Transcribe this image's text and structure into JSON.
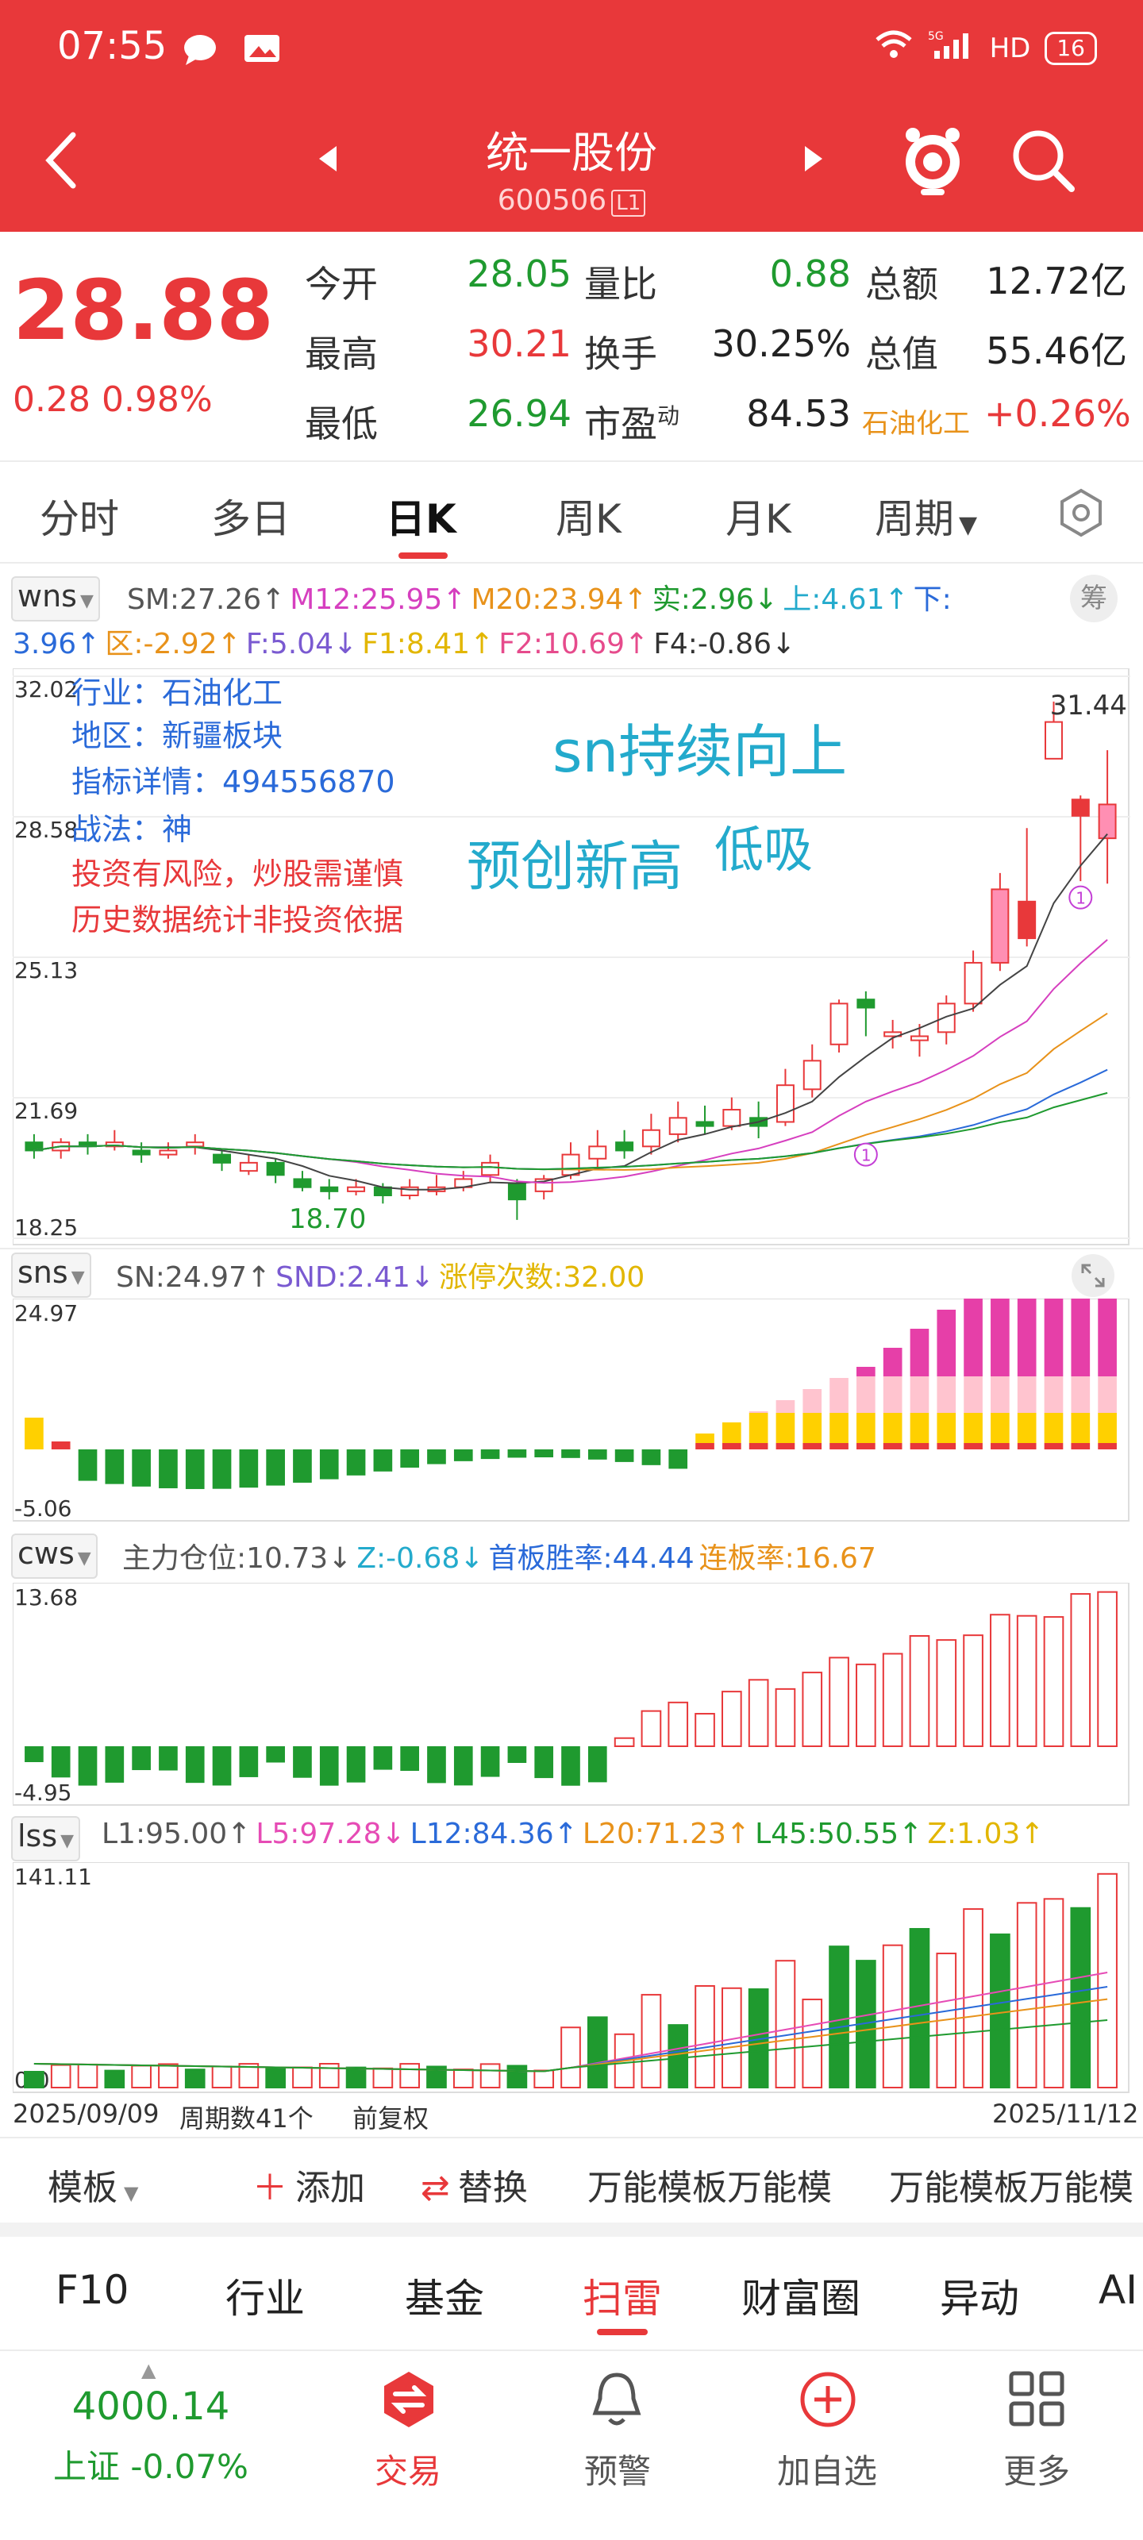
{
  "status": {
    "time": "07:55",
    "network": "5G",
    "hd": "HD",
    "battery": "16"
  },
  "header": {
    "title": "统一股份",
    "code": "600506",
    "level": "L1"
  },
  "quote": {
    "price": "28.88",
    "change": "0.28 0.98%",
    "fields": [
      {
        "label": "今开",
        "value": "28.05",
        "color": "green"
      },
      {
        "label": "量比",
        "value": "0.88",
        "color": "green"
      },
      {
        "label": "总额",
        "value": "12.72亿",
        "color": "dark"
      },
      {
        "label": "最高",
        "value": "30.21",
        "color": "red"
      },
      {
        "label": "换手",
        "value": "30.25%",
        "color": "dark"
      },
      {
        "label": "总值",
        "value": "55.46亿",
        "color": "dark"
      },
      {
        "label": "最低",
        "value": "26.94",
        "color": "green"
      },
      {
        "label": "市盈",
        "sup": "动",
        "value": "84.53",
        "color": "dark"
      },
      {
        "label": "石油化工",
        "value": "+0.26%",
        "color": "red"
      }
    ]
  },
  "tabs": [
    "分时",
    "多日",
    "日K",
    "周K",
    "月K",
    "周期"
  ],
  "active_tab": "日K",
  "chip_label": "筹",
  "wns": {
    "name": "wns",
    "line1": [
      {
        "t": "SM:27.26↑",
        "c": "#555"
      },
      {
        "t": "M12:25.95↑",
        "c": "#d63fbf"
      },
      {
        "t": "M20:23.94↑",
        "c": "#e8921a"
      },
      {
        "t": "实:2.96↓",
        "c": "#1f9a2f"
      },
      {
        "t": "上:4.61↑",
        "c": "#23aacc"
      },
      {
        "t": "下:",
        "c": "#2a6ad9"
      }
    ],
    "line2": [
      {
        "t": "3.96↑",
        "c": "#2a6ad9"
      },
      {
        "t": "区:-2.92↑",
        "c": "#e8921a"
      },
      {
        "t": "F:5.04↓",
        "c": "#7a5ad1"
      },
      {
        "t": "F1:8.41↑",
        "c": "#e2b600"
      },
      {
        "t": "F2:10.69↑",
        "c": "#e64b8c"
      },
      {
        "t": "F4:-0.86↓",
        "c": "#333"
      }
    ]
  },
  "kline_info": {
    "industry": "行业：石油化工",
    "region": "地区：新疆板块",
    "detail": "指标详情：494556870",
    "tactic": "战法：神",
    "risk1": "投资有风险，炒股需谨慎",
    "risk2": "历史数据统计非投资依据",
    "ann_up": "sn持续向上",
    "ann_high": "预创新高",
    "ann_low": "低吸",
    "high_label": "31.44",
    "low_label": "18.70",
    "y_labels": [
      "32.02",
      "28.58",
      "25.13",
      "21.69",
      "18.25"
    ]
  },
  "sns": {
    "name": "sns",
    "line": [
      {
        "t": "SN:24.97↑",
        "c": "#555"
      },
      {
        "t": "SND:2.41↓",
        "c": "#7a5ad1"
      },
      {
        "t": "涨停次数:32.00",
        "c": "#e2b600"
      }
    ],
    "y_labels": [
      "24.97",
      "-5.06"
    ]
  },
  "cws": {
    "name": "cws",
    "line": [
      {
        "t": "主力仓位:10.73↓",
        "c": "#555"
      },
      {
        "t": "Z:-0.68↓",
        "c": "#23aacc"
      },
      {
        "t": "首板胜率:44.44",
        "c": "#2a6ad9"
      },
      {
        "t": "连板率:16.67",
        "c": "#e8921a"
      }
    ],
    "y_labels": [
      "13.68",
      "-4.95"
    ]
  },
  "lss": {
    "name": "lss",
    "line": [
      {
        "t": "L1:95.00↑",
        "c": "#555"
      },
      {
        "t": "L5:97.28↓",
        "c": "#e64bb5"
      },
      {
        "t": "L12:84.36↑",
        "c": "#2a6ad9"
      },
      {
        "t": "L20:71.23↑",
        "c": "#e8921a"
      },
      {
        "t": "L45:50.55↑",
        "c": "#1f9a2f"
      },
      {
        "t": "Z:1.03↑",
        "c": "#e2b600"
      }
    ],
    "y_labels": [
      "141.11",
      "0.00"
    ]
  },
  "xaxis": {
    "start": "2025/09/09",
    "period": "周期数41个",
    "adjust": "前复权",
    "end": "2025/11/12"
  },
  "chart_data": {
    "type": "candlestick",
    "x_start": "2025/09/09",
    "x_end": "2025/11/12",
    "ylim": [
      18.25,
      32.02
    ],
    "candles": [
      [
        20.6,
        20.4,
        20.8,
        20.2
      ],
      [
        20.4,
        20.6,
        20.7,
        20.2
      ],
      [
        20.6,
        20.5,
        20.8,
        20.3
      ],
      [
        20.5,
        20.6,
        20.9,
        20.4
      ],
      [
        20.4,
        20.3,
        20.6,
        20.1
      ],
      [
        20.3,
        20.4,
        20.6,
        20.2
      ],
      [
        20.5,
        20.6,
        20.8,
        20.3
      ],
      [
        20.3,
        20.1,
        20.4,
        19.9
      ],
      [
        19.9,
        20.1,
        20.3,
        19.8
      ],
      [
        20.1,
        19.8,
        20.2,
        19.6
      ],
      [
        19.7,
        19.5,
        19.9,
        19.4
      ],
      [
        19.5,
        19.4,
        19.7,
        19.2
      ],
      [
        19.4,
        19.5,
        19.7,
        19.3
      ],
      [
        19.5,
        19.3,
        19.6,
        19.1
      ],
      [
        19.3,
        19.5,
        19.7,
        19.2
      ],
      [
        19.4,
        19.5,
        19.8,
        19.3
      ],
      [
        19.5,
        19.7,
        19.9,
        19.4
      ],
      [
        19.8,
        20.1,
        20.3,
        19.6
      ],
      [
        19.6,
        19.2,
        19.7,
        18.7
      ],
      [
        19.4,
        19.7,
        19.8,
        19.2
      ],
      [
        19.8,
        20.3,
        20.6,
        19.7
      ],
      [
        20.2,
        20.5,
        20.9,
        20.0
      ],
      [
        20.6,
        20.4,
        20.9,
        20.2
      ],
      [
        20.5,
        20.9,
        21.3,
        20.3
      ],
      [
        20.8,
        21.2,
        21.6,
        20.6
      ],
      [
        21.1,
        21.0,
        21.5,
        20.8
      ],
      [
        21.0,
        21.4,
        21.7,
        20.9
      ],
      [
        21.2,
        21.0,
        21.6,
        20.7
      ],
      [
        21.1,
        22.0,
        22.4,
        21.0
      ],
      [
        21.9,
        22.6,
        23.0,
        21.7
      ],
      [
        23.0,
        24.0,
        24.1,
        22.8
      ],
      [
        24.1,
        23.9,
        24.3,
        23.2
      ],
      [
        23.2,
        23.3,
        23.6,
        22.9
      ],
      [
        23.1,
        23.2,
        23.5,
        22.7
      ],
      [
        23.3,
        24.0,
        24.2,
        23.0
      ],
      [
        24.0,
        25.0,
        25.3,
        23.8
      ],
      [
        25.0,
        26.8,
        27.2,
        24.8
      ],
      [
        26.5,
        25.6,
        28.3,
        25.4
      ],
      [
        30.0,
        30.9,
        31.4,
        30.7
      ],
      [
        29.0,
        28.6,
        29.1,
        27.0
      ],
      [
        28.05,
        28.88,
        30.21,
        26.94
      ]
    ]
  },
  "template_bar": [
    "模板",
    "添加",
    "替换",
    "万能模板万能模",
    "万能模板万能模"
  ],
  "feature_tabs": [
    "F10",
    "行业",
    "基金",
    "扫雷",
    "财富圈",
    "异动",
    "AI"
  ],
  "active_feature": "扫雷",
  "bottom_nav": {
    "index_value": "4000.14",
    "index_name": "上证 -0.07%",
    "items": [
      "交易",
      "预警",
      "加自选",
      "更多"
    ]
  }
}
